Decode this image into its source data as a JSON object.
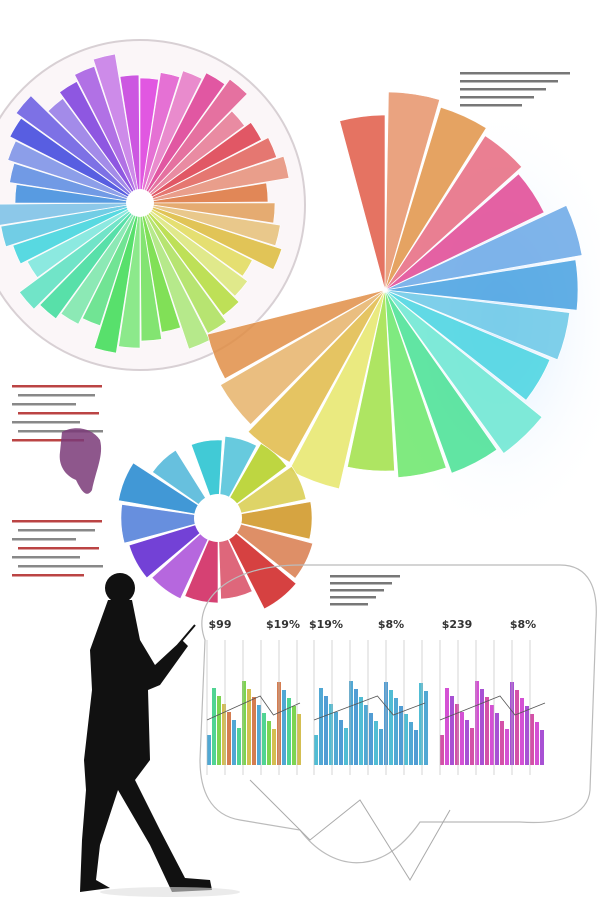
{
  "chart_labels": [
    "$99",
    "$19%",
    "$19%",
    "$8%",
    "$239",
    "$8%"
  ]
}
